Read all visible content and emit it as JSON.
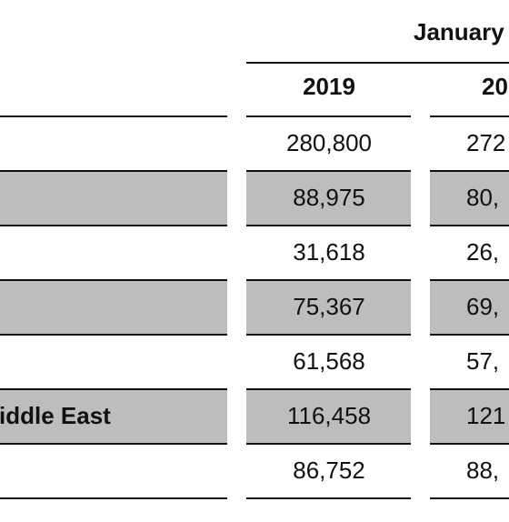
{
  "header": {
    "period": "January -",
    "columns": [
      "2019",
      "20"
    ]
  },
  "rows": [
    {
      "values": [
        "280,800",
        "272"
      ]
    },
    {
      "values": [
        "88,975",
        "80,"
      ]
    },
    {
      "values": [
        "31,618",
        "26,"
      ]
    },
    {
      "values": [
        "75,367",
        "69,"
      ]
    },
    {
      "values": [
        "61,568",
        "57,"
      ]
    },
    {
      "label": "iddle East",
      "values": [
        "116,458",
        "121"
      ]
    },
    {
      "values": [
        "86,752",
        "88,"
      ]
    }
  ]
}
